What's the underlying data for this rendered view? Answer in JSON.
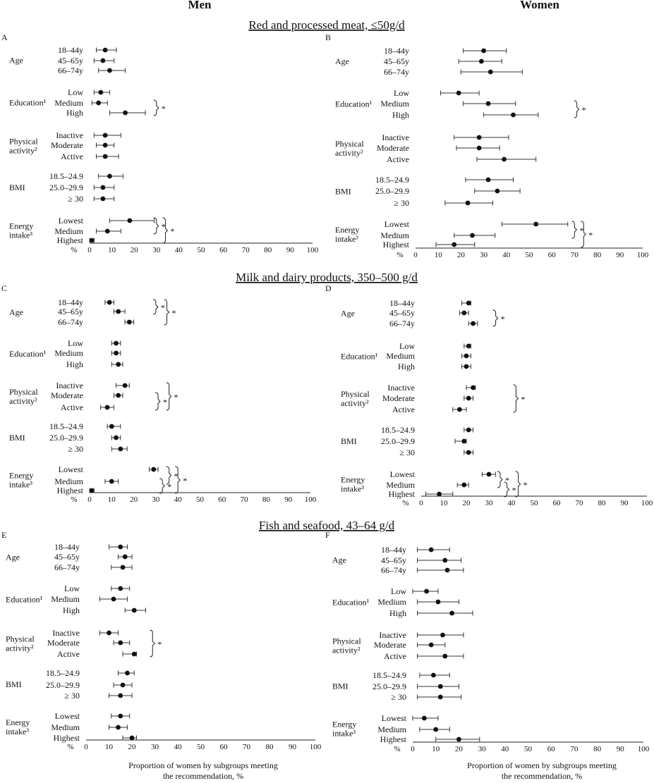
{
  "column_titles": {
    "men": "Men",
    "women": "Women"
  },
  "row_titles": [
    "Red and processed meat, ≤50g/d",
    "Milk and dairy products, 350–500 g/d",
    "Fish and seafood, 43–64 g/d"
  ],
  "x_axis_caption": [
    "Proportion of women by subgroups meeting",
    "the recommendation, %"
  ],
  "percent_label": "%",
  "sig_mark": "*",
  "groups": [
    {
      "label": [
        "Age"
      ],
      "items": [
        "18–44y",
        "45–65y",
        "66–74y"
      ]
    },
    {
      "label": [
        "Education¹"
      ],
      "items": [
        "Low",
        "Medium",
        "High"
      ]
    },
    {
      "label": [
        "Physical",
        "activity²"
      ],
      "items": [
        "Inactive",
        "Moderate",
        "Active"
      ]
    },
    {
      "label": [
        "BMI"
      ],
      "items": [
        "18.5–24.9",
        "25.0–29.9",
        "≥ 30"
      ]
    },
    {
      "label": [
        "Energy",
        "intake³"
      ],
      "items": [
        "Lowest",
        "Medium",
        "Highest"
      ]
    }
  ],
  "chart_data": [
    {
      "type": "scatter",
      "panel": "A",
      "title": "Red and processed meat, ≤50g/d",
      "sex": "Men",
      "xlabel": "%",
      "xlim": [
        0,
        100
      ],
      "xticks": [
        0,
        10,
        20,
        30,
        40,
        50,
        60,
        70,
        80,
        90,
        100
      ],
      "points": [
        {
          "group": "Age",
          "label": "18–44y",
          "x": 7,
          "lo": 3,
          "hi": 12
        },
        {
          "group": "Age",
          "label": "45–65y",
          "x": 6,
          "lo": 2,
          "hi": 11
        },
        {
          "group": "Age",
          "label": "66–74y",
          "x": 9,
          "lo": 4,
          "hi": 16
        },
        {
          "group": "Education",
          "label": "Low",
          "x": 5,
          "lo": 2,
          "hi": 9
        },
        {
          "group": "Education",
          "label": "Medium",
          "x": 4,
          "lo": 1,
          "hi": 8
        },
        {
          "group": "Education",
          "label": "High",
          "x": 16,
          "lo": 9,
          "hi": 25
        },
        {
          "group": "Physical activity",
          "label": "Inactive",
          "x": 7,
          "lo": 2,
          "hi": 14
        },
        {
          "group": "Physical activity",
          "label": "Moderate",
          "x": 7,
          "lo": 3,
          "hi": 11
        },
        {
          "group": "Physical activity",
          "label": "Active",
          "x": 7,
          "lo": 3,
          "hi": 13
        },
        {
          "group": "BMI",
          "label": "18.5–24.9",
          "x": 9,
          "lo": 4,
          "hi": 15
        },
        {
          "group": "BMI",
          "label": "25.0–29.9",
          "x": 6,
          "lo": 2,
          "hi": 11
        },
        {
          "group": "BMI",
          "label": "≥ 30",
          "x": 6,
          "lo": 2,
          "hi": 11
        },
        {
          "group": "Energy intake",
          "label": "Lowest",
          "x": 18,
          "lo": 9,
          "hi": 29
        },
        {
          "group": "Energy intake",
          "label": "Medium",
          "x": 8,
          "lo": 3,
          "hi": 14
        },
        {
          "group": "Energy intake",
          "label": "Highest",
          "x": 1,
          "lo": 0,
          "hi": 2
        }
      ],
      "significance": [
        {
          "rows": [
            4,
            5
          ],
          "x": 30,
          "mark": "*"
        },
        {
          "rows": [
            12,
            13
          ],
          "x": 30,
          "mark": "*"
        },
        {
          "rows": [
            12,
            14
          ],
          "x": 34,
          "mark": "*"
        }
      ]
    },
    {
      "type": "scatter",
      "panel": "B",
      "title": "Red and processed meat, ≤50g/d",
      "sex": "Women",
      "xlabel": "%",
      "xlim": [
        0,
        100
      ],
      "xticks": [
        0,
        10,
        20,
        30,
        40,
        50,
        60,
        70,
        80,
        90,
        100
      ],
      "points": [
        {
          "group": "Age",
          "label": "18–44y",
          "x": 30,
          "lo": 21,
          "hi": 40
        },
        {
          "group": "Age",
          "label": "45–65y",
          "x": 29,
          "lo": 19,
          "hi": 38
        },
        {
          "group": "Age",
          "label": "66–74y",
          "x": 33,
          "lo": 20,
          "hi": 47
        },
        {
          "group": "Education",
          "label": "Low",
          "x": 19,
          "lo": 11,
          "hi": 28
        },
        {
          "group": "Education",
          "label": "Medium",
          "x": 32,
          "lo": 21,
          "hi": 44
        },
        {
          "group": "Education",
          "label": "High",
          "x": 43,
          "lo": 30,
          "hi": 54
        },
        {
          "group": "Physical activity",
          "label": "Inactive",
          "x": 28,
          "lo": 17,
          "hi": 41
        },
        {
          "group": "Physical activity",
          "label": "Moderate",
          "x": 28,
          "lo": 18,
          "hi": 37
        },
        {
          "group": "Physical activity",
          "label": "Active",
          "x": 39,
          "lo": 27,
          "hi": 53
        },
        {
          "group": "BMI",
          "label": "18.5–24.9",
          "x": 32,
          "lo": 22,
          "hi": 43
        },
        {
          "group": "BMI",
          "label": "25.0–29.9",
          "x": 36,
          "lo": 26,
          "hi": 46
        },
        {
          "group": "BMI",
          "label": "≥ 30",
          "x": 23,
          "lo": 13,
          "hi": 34
        },
        {
          "group": "Energy intake",
          "label": "Lowest",
          "x": 53,
          "lo": 38,
          "hi": 67
        },
        {
          "group": "Energy intake",
          "label": "Medium",
          "x": 25,
          "lo": 17,
          "hi": 35
        },
        {
          "group": "Energy intake",
          "label": "Highest",
          "x": 17,
          "lo": 9,
          "hi": 26
        }
      ],
      "significance": [
        {
          "rows": [
            4,
            5
          ],
          "x": 71,
          "mark": "*"
        },
        {
          "rows": [
            12,
            13
          ],
          "x": 70,
          "mark": "*"
        },
        {
          "rows": [
            12,
            14
          ],
          "x": 74,
          "mark": "*"
        }
      ]
    },
    {
      "type": "scatter",
      "panel": "C",
      "title": "Milk and dairy products, 350–500 g/d",
      "sex": "Men",
      "xlabel": "%",
      "xlim": [
        0,
        100
      ],
      "xticks": [
        0,
        10,
        20,
        30,
        40,
        50,
        60,
        70,
        80,
        90,
        100
      ],
      "points": [
        {
          "group": "Age",
          "label": "18–44y",
          "x": 9,
          "lo": 7,
          "hi": 11
        },
        {
          "group": "Age",
          "label": "45–65y",
          "x": 13,
          "lo": 11,
          "hi": 16
        },
        {
          "group": "Age",
          "label": "66–74y",
          "x": 18,
          "lo": 16,
          "hi": 20
        },
        {
          "group": "Education",
          "label": "Low",
          "x": 12,
          "lo": 10,
          "hi": 14
        },
        {
          "group": "Education",
          "label": "Medium",
          "x": 12,
          "lo": 10,
          "hi": 14
        },
        {
          "group": "Education",
          "label": "High",
          "x": 13,
          "lo": 10,
          "hi": 15
        },
        {
          "group": "Physical activity",
          "label": "Inactive",
          "x": 16,
          "lo": 12,
          "hi": 18
        },
        {
          "group": "Physical activity",
          "label": "Moderate",
          "x": 13,
          "lo": 11,
          "hi": 15
        },
        {
          "group": "Physical activity",
          "label": "Active",
          "x": 8,
          "lo": 5,
          "hi": 11
        },
        {
          "group": "BMI",
          "label": "18.5–24.9",
          "x": 10,
          "lo": 8,
          "hi": 14
        },
        {
          "group": "BMI",
          "label": "25.0–29.9",
          "x": 12,
          "lo": 10,
          "hi": 14
        },
        {
          "group": "BMI",
          "label": "≥ 30",
          "x": 14,
          "lo": 10,
          "hi": 17
        },
        {
          "group": "Energy intake",
          "label": "Lowest",
          "x": 29,
          "lo": 27,
          "hi": 31
        },
        {
          "group": "Energy intake",
          "label": "Medium",
          "x": 10,
          "lo": 7,
          "hi": 13
        },
        {
          "group": "Energy intake",
          "label": "Highest",
          "x": 1,
          "lo": 0,
          "hi": 2
        }
      ],
      "significance": [
        {
          "rows": [
            0,
            1
          ],
          "x": 30,
          "mark": "*"
        },
        {
          "rows": [
            0,
            2
          ],
          "x": 35,
          "mark": "*"
        },
        {
          "rows": [
            7,
            8
          ],
          "x": 31,
          "mark": "*"
        },
        {
          "rows": [
            6,
            8
          ],
          "x": 36,
          "mark": "*"
        },
        {
          "rows": [
            12,
            13
          ],
          "x": 36,
          "mark": "*"
        },
        {
          "rows": [
            13,
            14
          ],
          "x": 33,
          "mark": "*"
        },
        {
          "rows": [
            12,
            14
          ],
          "x": 40,
          "mark": "*"
        }
      ]
    },
    {
      "type": "scatter",
      "panel": "D",
      "title": "Milk and dairy products, 350–500 g/d",
      "sex": "Women",
      "xlabel": "%",
      "xlim": [
        0,
        100
      ],
      "xticks": [
        0,
        10,
        20,
        30,
        40,
        50,
        60,
        70,
        80,
        90,
        100
      ],
      "points": [
        {
          "group": "Age",
          "label": "18–44y",
          "x": 21,
          "lo": 18,
          "hi": 22
        },
        {
          "group": "Age",
          "label": "45–65y",
          "x": 19,
          "lo": 17,
          "hi": 21
        },
        {
          "group": "Age",
          "label": "66–74y",
          "x": 23,
          "lo": 21,
          "hi": 25
        },
        {
          "group": "Education",
          "label": "Low",
          "x": 21,
          "lo": 19,
          "hi": 22
        },
        {
          "group": "Education",
          "label": "Medium",
          "x": 20,
          "lo": 18,
          "hi": 22
        },
        {
          "group": "Education",
          "label": "High",
          "x": 20,
          "lo": 18,
          "hi": 22
        },
        {
          "group": "Physical activity",
          "label": "Inactive",
          "x": 23,
          "lo": 20,
          "hi": 24
        },
        {
          "group": "Physical activity",
          "label": "Moderate",
          "x": 21,
          "lo": 19,
          "hi": 23
        },
        {
          "group": "Physical activity",
          "label": "Active",
          "x": 17,
          "lo": 14,
          "hi": 20
        },
        {
          "group": "BMI",
          "label": "18.5–24.9",
          "x": 21,
          "lo": 19,
          "hi": 23
        },
        {
          "group": "BMI",
          "label": "25.0–29.9",
          "x": 19,
          "lo": 15,
          "hi": 20
        },
        {
          "group": "BMI",
          "label": "≥ 30",
          "x": 21,
          "lo": 19,
          "hi": 23
        },
        {
          "group": "Energy intake",
          "label": "Lowest",
          "x": 30,
          "lo": 27,
          "hi": 33
        },
        {
          "group": "Energy intake",
          "label": "Medium",
          "x": 19,
          "lo": 16,
          "hi": 21
        },
        {
          "group": "Energy intake",
          "label": "Highest",
          "x": 8,
          "lo": 2,
          "hi": 14
        }
      ],
      "significance": [
        {
          "rows": [
            1,
            2
          ],
          "x": 33,
          "mark": "*"
        },
        {
          "rows": [
            6,
            8
          ],
          "x": 42,
          "mark": "*"
        },
        {
          "rows": [
            12,
            13
          ],
          "x": 35,
          "mark": "*"
        },
        {
          "rows": [
            13,
            14
          ],
          "x": 38,
          "mark": "*"
        },
        {
          "rows": [
            12,
            14
          ],
          "x": 43,
          "mark": "*"
        }
      ]
    },
    {
      "type": "scatter",
      "panel": "E",
      "title": "Fish and seafood, 43–64 g/d",
      "sex": "Men",
      "xlabel": "%",
      "xlim": [
        0,
        100
      ],
      "xticks": [
        0,
        10,
        20,
        30,
        40,
        50,
        60,
        70,
        80,
        90,
        100
      ],
      "points": [
        {
          "group": "Age",
          "label": "18–44y",
          "x": 15,
          "lo": 10,
          "hi": 18
        },
        {
          "group": "Age",
          "label": "45–65y",
          "x": 17,
          "lo": 14,
          "hi": 20
        },
        {
          "group": "Age",
          "label": "66–74y",
          "x": 16,
          "lo": 11,
          "hi": 20
        },
        {
          "group": "Education",
          "label": "Low",
          "x": 15,
          "lo": 11,
          "hi": 19
        },
        {
          "group": "Education",
          "label": "Medium",
          "x": 12,
          "lo": 6,
          "hi": 18
        },
        {
          "group": "Education",
          "label": "High",
          "x": 21,
          "lo": 17,
          "hi": 26
        },
        {
          "group": "Physical activity",
          "label": "Inactive",
          "x": 10,
          "lo": 6,
          "hi": 14
        },
        {
          "group": "Physical activity",
          "label": "Moderate",
          "x": 15,
          "lo": 12,
          "hi": 19
        },
        {
          "group": "Physical activity",
          "label": "Active",
          "x": 21,
          "lo": 16,
          "hi": 22
        },
        {
          "group": "BMI",
          "label": "18.5–24.9",
          "x": 18,
          "lo": 14,
          "hi": 21
        },
        {
          "group": "BMI",
          "label": "25.0–29.9",
          "x": 16,
          "lo": 12,
          "hi": 20
        },
        {
          "group": "BMI",
          "label": "≥ 30",
          "x": 15,
          "lo": 10,
          "hi": 20
        },
        {
          "group": "Energy intake",
          "label": "Lowest",
          "x": 15,
          "lo": 11,
          "hi": 19
        },
        {
          "group": "Energy intake",
          "label": "Medium",
          "x": 14,
          "lo": 10,
          "hi": 18
        },
        {
          "group": "Energy intake",
          "label": "Highest",
          "x": 20,
          "lo": 16,
          "hi": 22
        }
      ],
      "significance": [
        {
          "rows": [
            6,
            8
          ],
          "x": 29,
          "mark": "*"
        }
      ]
    },
    {
      "type": "scatter",
      "panel": "F",
      "title": "Fish and seafood, 43–64 g/d",
      "sex": "Women",
      "xlabel": "%",
      "xlim": [
        0,
        100
      ],
      "xticks": [
        0,
        10,
        20,
        30,
        40,
        50,
        60,
        70,
        80,
        90,
        100
      ],
      "points": [
        {
          "group": "Age",
          "label": "18–44y",
          "x": 8,
          "lo": 2,
          "hi": 16
        },
        {
          "group": "Age",
          "label": "45–65y",
          "x": 14,
          "lo": 2,
          "hi": 21
        },
        {
          "group": "Age",
          "label": "66–74y",
          "x": 15,
          "lo": 2,
          "hi": 22
        },
        {
          "group": "Education",
          "label": "Low",
          "x": 6,
          "lo": 0,
          "hi": 11
        },
        {
          "group": "Education",
          "label": "Medium",
          "x": 11,
          "lo": 2,
          "hi": 20
        },
        {
          "group": "Education",
          "label": "High",
          "x": 17,
          "lo": 2,
          "hi": 26
        },
        {
          "group": "Physical activity",
          "label": "Inactive",
          "x": 13,
          "lo": 2,
          "hi": 22
        },
        {
          "group": "Physical activity",
          "label": "Moderate",
          "x": 8,
          "lo": 2,
          "hi": 14
        },
        {
          "group": "Physical activity",
          "label": "Active",
          "x": 14,
          "lo": 2,
          "hi": 22
        },
        {
          "group": "BMI",
          "label": "18.5–24.9",
          "x": 9,
          "lo": 3,
          "hi": 16
        },
        {
          "group": "BMI",
          "label": "25.0–29.9",
          "x": 12,
          "lo": 2,
          "hi": 20
        },
        {
          "group": "BMI",
          "label": "≥ 30",
          "x": 12,
          "lo": 2,
          "hi": 21
        },
        {
          "group": "Energy intake",
          "label": "Lowest",
          "x": 5,
          "lo": 0,
          "hi": 11
        },
        {
          "group": "Energy intake",
          "label": "Medium",
          "x": 10,
          "lo": 3,
          "hi": 16
        },
        {
          "group": "Energy intake",
          "label": "Highest",
          "x": 20,
          "lo": 10,
          "hi": 29
        }
      ],
      "significance": []
    }
  ]
}
